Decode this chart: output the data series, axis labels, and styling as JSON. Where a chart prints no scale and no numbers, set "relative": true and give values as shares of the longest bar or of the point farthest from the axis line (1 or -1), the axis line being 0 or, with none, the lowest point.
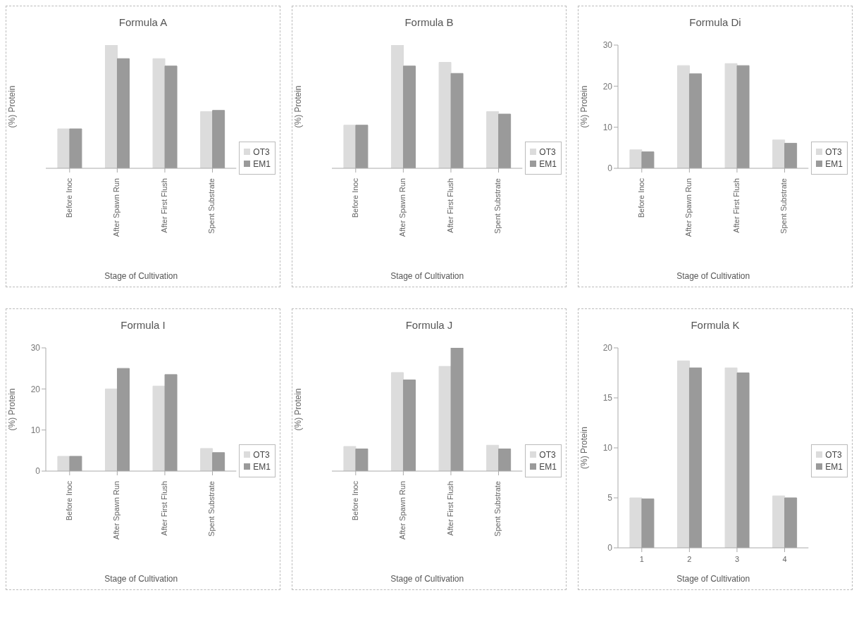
{
  "chart_data": [
    {
      "type": "bar",
      "title": "Formula A",
      "xlabel": "Stage of Cultivation",
      "ylabel": "(%) Protein",
      "categories": [
        "Before Inoc",
        "After Spawn Run",
        "After First Flush",
        "Spent Substrate"
      ],
      "relative": true,
      "legend": "right",
      "series": [
        {
          "name": "OT3",
          "color": "#dcdcdc",
          "values": [
            0.32,
            1,
            0.89,
            0.46
          ]
        },
        {
          "name": "EM1",
          "color": "#9a9a9a",
          "values": [
            0.32,
            0.89,
            0.83,
            0.47
          ]
        }
      ]
    },
    {
      "type": "bar",
      "title": "Formula B",
      "xlabel": "Stage of Cultivation",
      "ylabel": "(%) Protein",
      "categories": [
        "Before Inoc",
        "After Spawn Run",
        "After First Flush",
        "Spent Substrate"
      ],
      "relative": true,
      "legend": "right",
      "series": [
        {
          "name": "OT3",
          "color": "#dcdcdc",
          "values": [
            0.35,
            1,
            0.86,
            0.46
          ]
        },
        {
          "name": "EM1",
          "color": "#9a9a9a",
          "values": [
            0.35,
            0.83,
            0.77,
            0.44
          ]
        }
      ]
    },
    {
      "type": "bar",
      "title": "Formula Di",
      "xlabel": "Stage of Cultivation",
      "ylabel": "(%) Protein",
      "categories": [
        "Before Inoc",
        "After Spawn Run",
        "After First Flush",
        "Spent Substrate"
      ],
      "ylim": [
        0,
        30
      ],
      "yticks": [
        0,
        10,
        20,
        30
      ],
      "legend": "right",
      "series": [
        {
          "name": "OT3",
          "color": "#dcdcdc",
          "values": [
            4.5,
            25,
            25.5,
            6.9
          ]
        },
        {
          "name": "EM1",
          "color": "#9a9a9a",
          "values": [
            4,
            23,
            25,
            6.1
          ]
        }
      ]
    },
    {
      "type": "bar",
      "title": "Formula I",
      "xlabel": "Stage of Cultivation",
      "ylabel": "(%) Protein",
      "categories": [
        "Before Inoc",
        "After Spawn Run",
        "After First Flush",
        "Spent Substrate"
      ],
      "ylim": [
        0,
        30
      ],
      "yticks": [
        0,
        10,
        20,
        30
      ],
      "legend": "right",
      "series": [
        {
          "name": "OT3",
          "color": "#dcdcdc",
          "values": [
            3.6,
            20,
            20.7,
            5.5
          ]
        },
        {
          "name": "EM1",
          "color": "#9a9a9a",
          "values": [
            3.6,
            25,
            23.5,
            4.5
          ]
        }
      ]
    },
    {
      "type": "bar",
      "title": "Formula J",
      "xlabel": "Stage of Cultivation",
      "ylabel": "(%) Protein",
      "categories": [
        "Before Inoc",
        "After Spawn Run",
        "After First Flush",
        "Spent Substrate"
      ],
      "relative": true,
      "legend": "right",
      "series": [
        {
          "name": "OT3",
          "color": "#dcdcdc",
          "values": [
            0.2,
            0.8,
            0.85,
            0.21
          ]
        },
        {
          "name": "EM1",
          "color": "#9a9a9a",
          "values": [
            0.18,
            0.74,
            1,
            0.18
          ]
        }
      ]
    },
    {
      "type": "bar",
      "title": "Formula K",
      "xlabel": "Stage of Cultivation",
      "ylabel": "(%) Protein",
      "categories": [
        "1",
        "2",
        "3",
        "4"
      ],
      "ylim": [
        0,
        20
      ],
      "yticks": [
        0,
        5,
        10,
        15,
        20
      ],
      "legend": "right",
      "series": [
        {
          "name": "OT3",
          "color": "#dcdcdc",
          "values": [
            5,
            18.7,
            18,
            5.2
          ]
        },
        {
          "name": "EM1",
          "color": "#9a9a9a",
          "values": [
            4.9,
            18,
            17.5,
            5
          ]
        }
      ]
    }
  ]
}
